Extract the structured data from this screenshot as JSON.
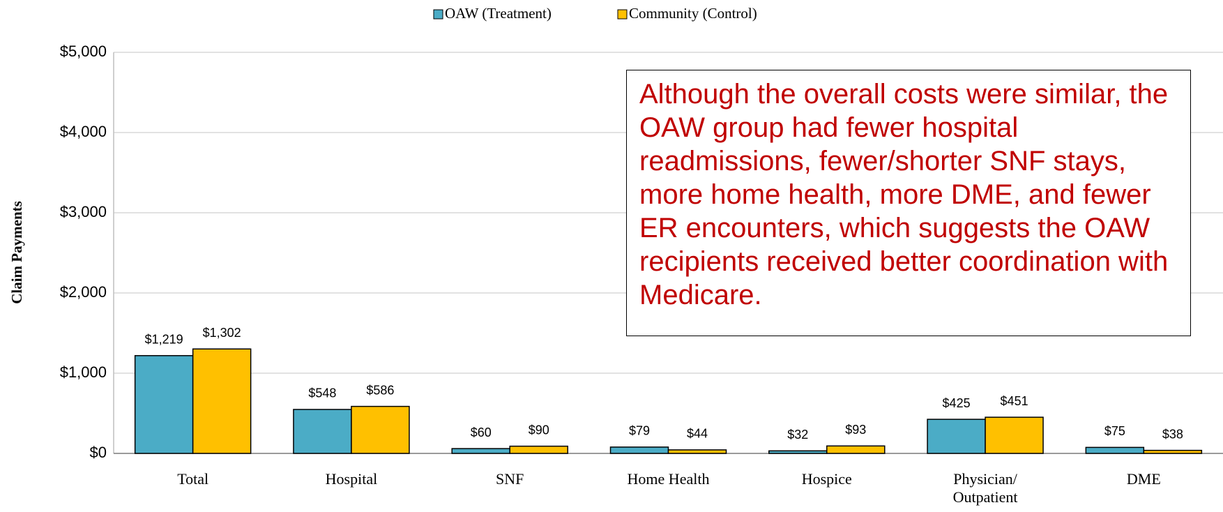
{
  "chart_data": {
    "type": "bar",
    "legend": "top",
    "y_axis_label": "Claim Payments",
    "annotation": "Although the overall costs were similar, the OAW group had fewer hospital readmissions, fewer/shorter SNF stays, more home health, more DME, and fewer ER encounters, which suggests the OAW recipients received better coordination with Medicare.",
    "categories": [
      "Total",
      "Hospital",
      "SNF",
      "Home Health",
      "Hospice",
      "Physician/ Outpatient",
      "DME"
    ],
    "series": [
      {
        "name": "OAW (Treatment)",
        "color": "#4bacc6",
        "values": [
          1219,
          548,
          60,
          79,
          32,
          425,
          75
        ],
        "value_labels": [
          "$1,219",
          "$548",
          "$60",
          "$79",
          "$32",
          "$425",
          "$75"
        ]
      },
      {
        "name": "Community (Control)",
        "color": "#ffc000",
        "values": [
          1302,
          586,
          90,
          44,
          93,
          451,
          38
        ],
        "value_labels": [
          "$1,302",
          "$586",
          "$90",
          "$44",
          "$93",
          "$451",
          "$38"
        ]
      }
    ],
    "ylim": [
      0,
      5000
    ],
    "yticks": [
      {
        "value": 0,
        "label": "$0"
      },
      {
        "value": 1000,
        "label": "$1,000"
      },
      {
        "value": 2000,
        "label": "$2,000"
      },
      {
        "value": 3000,
        "label": "$3,000"
      },
      {
        "value": 4000,
        "label": "$4,000"
      },
      {
        "value": 5000,
        "label": "$5,000"
      }
    ],
    "grid": true
  }
}
